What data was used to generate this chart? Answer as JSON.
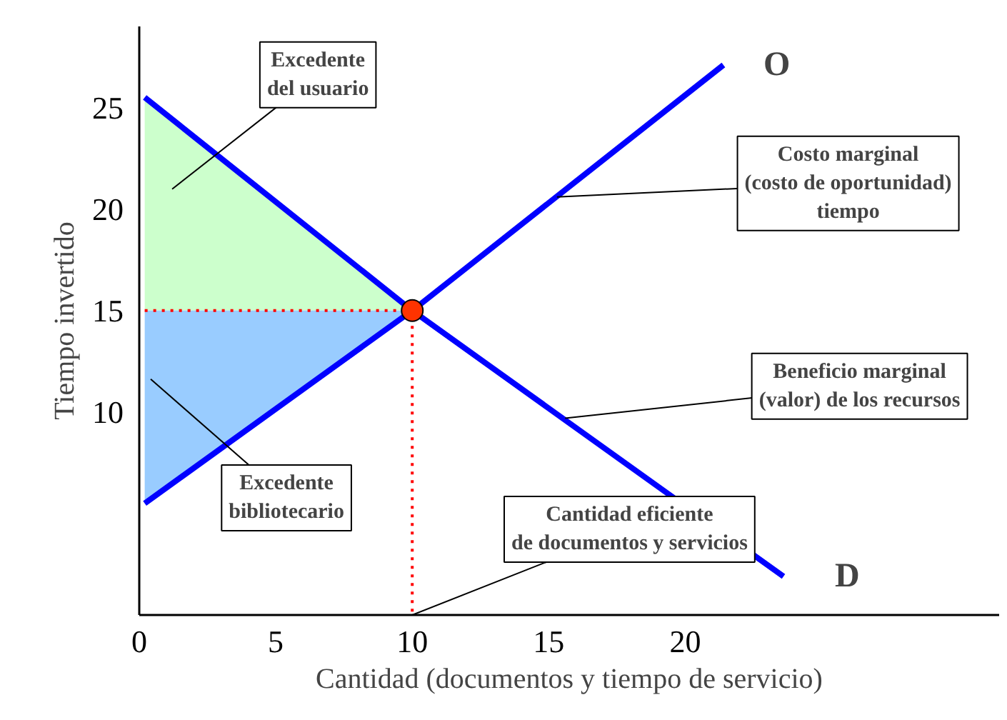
{
  "chart_data": {
    "type": "line",
    "xlabel": "Cantidad (documentos y tiempo de servicio)",
    "ylabel": "Tiempo invertido",
    "xlim": [
      0,
      31.5
    ],
    "ylim": [
      0,
      29
    ],
    "xticks": [
      0,
      5,
      10,
      15,
      20
    ],
    "yticks": [
      10,
      15,
      20,
      25
    ],
    "grid": false,
    "series": [
      {
        "type": "area",
        "color": "#ccffcc",
        "x": [
          0.2,
          10,
          0.2
        ],
        "values": [
          25.5,
          15,
          15
        ]
      },
      {
        "type": "area",
        "color": "#99ccff",
        "x": [
          0.2,
          10,
          0.2
        ],
        "values": [
          15,
          15,
          5.5
        ]
      },
      {
        "line_style": "dotted",
        "color": "#ff0000",
        "x": [
          0.2,
          10,
          10
        ],
        "values": [
          15,
          15,
          0
        ]
      },
      {
        "name": "O",
        "color": "#0000ff",
        "x": [
          0.2,
          10,
          21.4
        ],
        "values": [
          5.5,
          15,
          27.1
        ]
      },
      {
        "name": "D",
        "color": "#0000ff",
        "x": [
          0.2,
          10,
          23.6
        ],
        "values": [
          25.5,
          15,
          1.9
        ]
      },
      {
        "type": "scatter",
        "marker": "circle",
        "color": "#ff3300",
        "x": [
          10
        ],
        "values": [
          15
        ]
      }
    ],
    "annotations": [
      "Excedente\ndel usuario",
      {
        "text": "Costo marginal\n(costo de oportunidad)\ntiempo",
        "x": 15.3,
        "y": 20.6
      },
      {
        "text": "Beneficio marginal\n(valor) de los recursos",
        "x": 15.6,
        "y": 9.7
      },
      "Excedente\nbibliotecario",
      {
        "text": "Cantidad eficiente\nde documentos y servicios",
        "x": 10,
        "y": 0
      }
    ]
  }
}
